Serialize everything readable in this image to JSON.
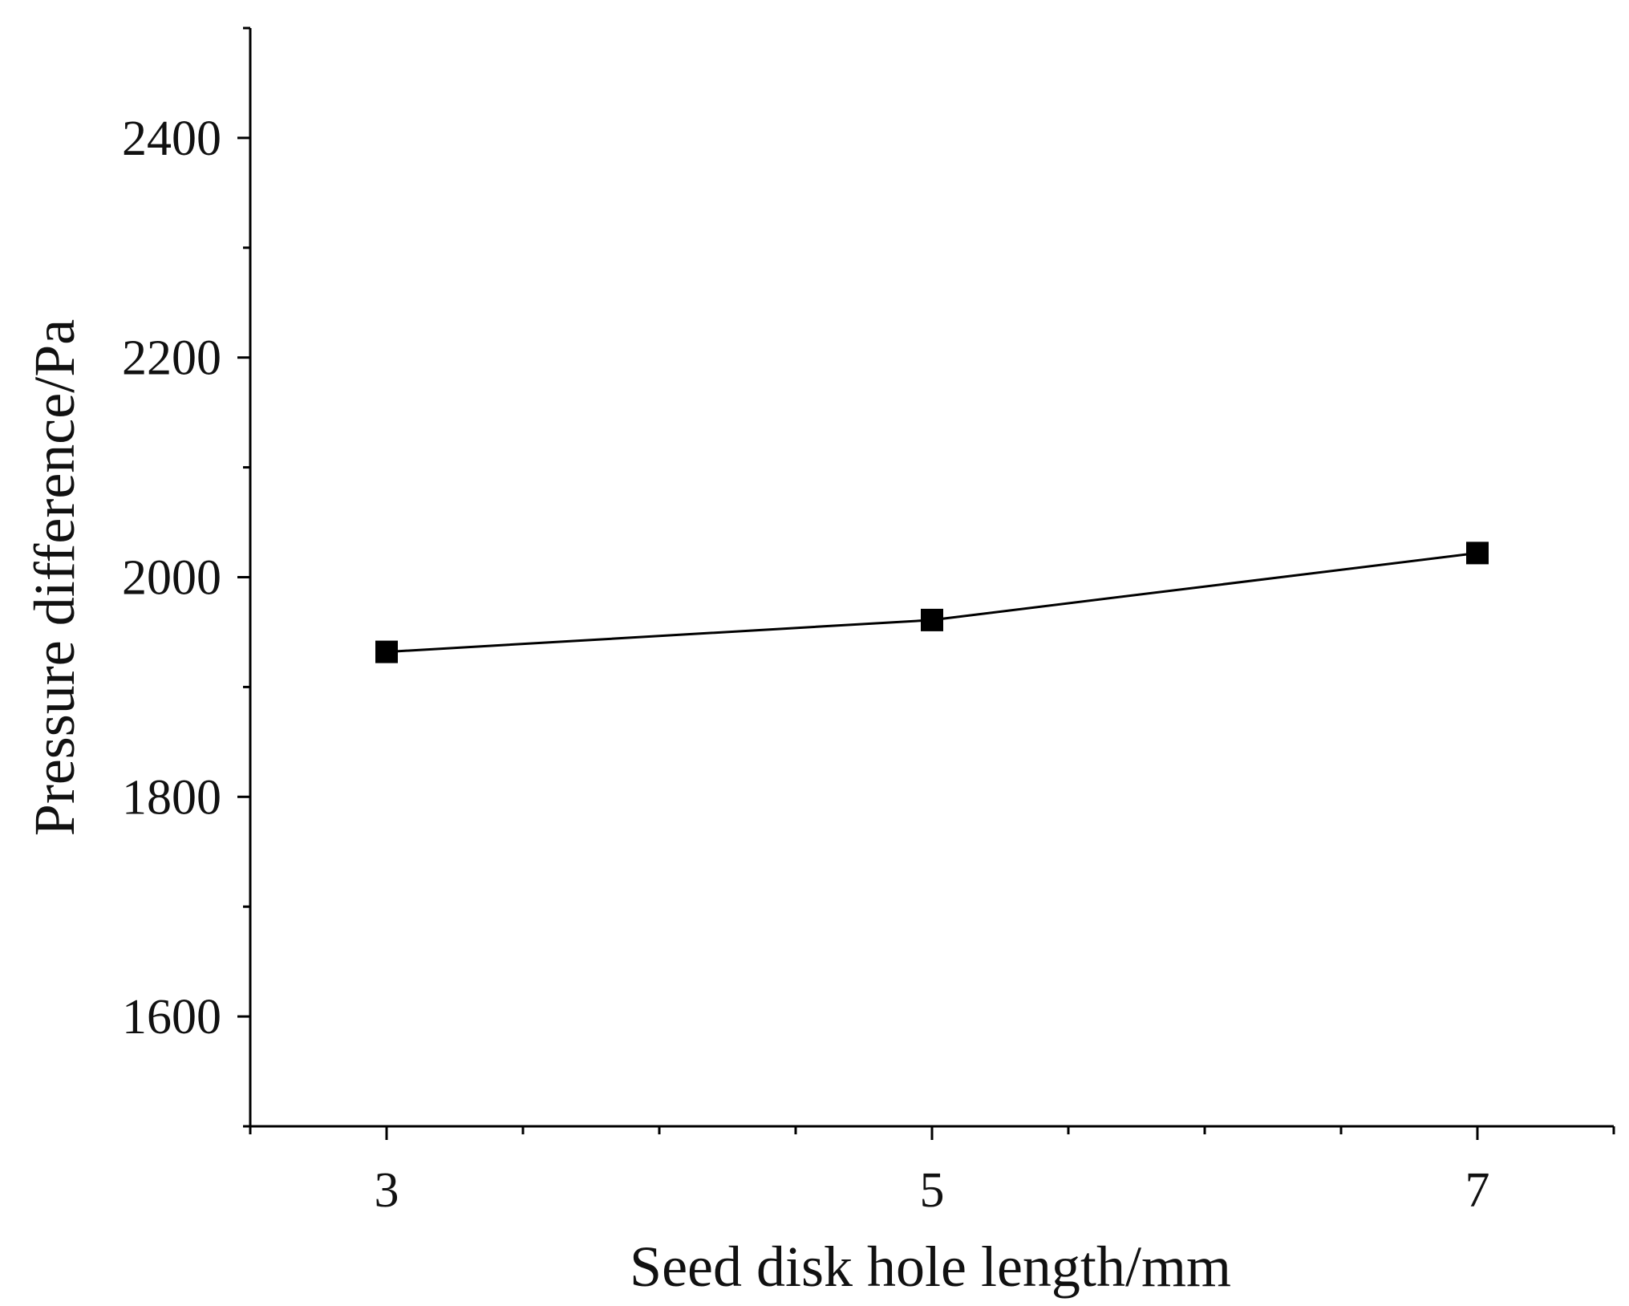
{
  "chart_data": {
    "type": "line",
    "title": "",
    "xlabel": "Seed disk hole length/mm",
    "ylabel": "Pressure difference/Pa",
    "xlim": [
      2.5,
      7.5
    ],
    "ylim": [
      1500,
      2500
    ],
    "x_ticks": [
      3,
      5,
      7
    ],
    "x_tick_labels": [
      "3",
      "5",
      "7"
    ],
    "x_minor_ticks": [
      2.5,
      3.5,
      4,
      4.5,
      5.5,
      6,
      6.5,
      7.5
    ],
    "y_ticks": [
      1600,
      1800,
      2000,
      2200,
      2400
    ],
    "y_tick_labels": [
      "1600",
      "1800",
      "2000",
      "2200",
      "2400"
    ],
    "y_minor_ticks": [
      1500,
      1700,
      1900,
      2100,
      2300,
      2500
    ],
    "grid": false,
    "legend": "none",
    "colors": {
      "line": "#000000",
      "marker": "#000000",
      "axis": "#000000"
    },
    "marker": "square",
    "series": [
      {
        "x": [
          3,
          5,
          7
        ],
        "y": [
          1932,
          1961,
          2022
        ]
      }
    ]
  }
}
